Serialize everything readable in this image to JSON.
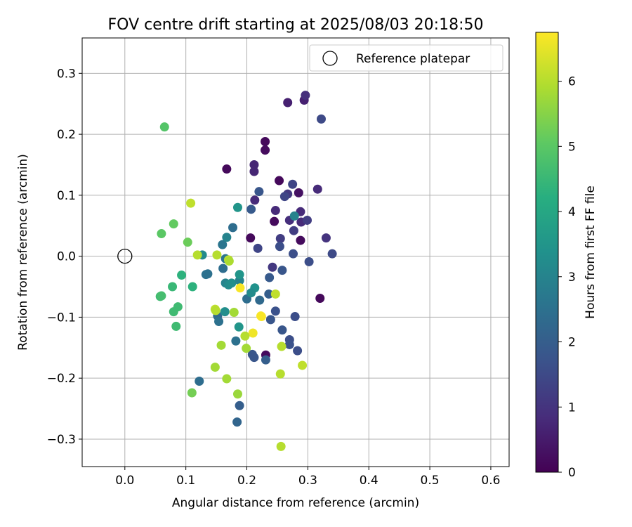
{
  "chart_data": {
    "type": "scatter",
    "title": "FOV centre drift starting at 2025/08/03 20:18:50",
    "xlabel": "Angular distance from reference (arcmin)",
    "ylabel": "Rotation from reference (arcmin)",
    "xlim": [
      -0.07,
      0.63
    ],
    "ylim": [
      -0.345,
      0.358
    ],
    "xticks": [
      0.0,
      0.1,
      0.2,
      0.3,
      0.4,
      0.5,
      0.6
    ],
    "xtick_labels": [
      "0.0",
      "0.1",
      "0.2",
      "0.3",
      "0.4",
      "0.5",
      "0.6"
    ],
    "yticks": [
      -0.3,
      -0.2,
      -0.1,
      0.0,
      0.1,
      0.2,
      0.3
    ],
    "ytick_labels": [
      "−0.3",
      "−0.2",
      "−0.1",
      "0.0",
      "0.1",
      "0.2",
      "0.3"
    ],
    "grid": true,
    "legend": {
      "position": "top-right",
      "entries": [
        "Reference platepar"
      ]
    },
    "reference_point": {
      "x": 0.0,
      "y": 0.0
    },
    "colorbar": {
      "label": "Hours from first FF file",
      "colormap": "viridis",
      "range": [
        0,
        6.75
      ],
      "ticks": [
        0,
        1,
        2,
        3,
        4,
        5,
        6
      ],
      "tick_labels": [
        "0",
        "1",
        "2",
        "3",
        "4",
        "5",
        "6"
      ]
    },
    "points": [
      {
        "x": 0.23,
        "y": 0.188,
        "t": 0.15
      },
      {
        "x": 0.23,
        "y": 0.174,
        "t": 0.2
      },
      {
        "x": 0.167,
        "y": 0.143,
        "t": 0.15
      },
      {
        "x": 0.253,
        "y": 0.124,
        "t": 0.15
      },
      {
        "x": 0.245,
        "y": 0.057,
        "t": 0.2
      },
      {
        "x": 0.206,
        "y": 0.03,
        "t": 0.15
      },
      {
        "x": 0.288,
        "y": 0.026,
        "t": 0.2
      },
      {
        "x": 0.32,
        "y": -0.069,
        "t": 0.15
      },
      {
        "x": 0.231,
        "y": -0.162,
        "t": 0.2
      },
      {
        "x": 0.285,
        "y": 0.104,
        "t": 0.3
      },
      {
        "x": 0.267,
        "y": 0.252,
        "t": 0.6
      },
      {
        "x": 0.294,
        "y": 0.256,
        "t": 0.6
      },
      {
        "x": 0.296,
        "y": 0.264,
        "t": 0.9
      },
      {
        "x": 0.212,
        "y": 0.15,
        "t": 0.7
      },
      {
        "x": 0.212,
        "y": 0.139,
        "t": 0.7
      },
      {
        "x": 0.213,
        "y": 0.092,
        "t": 0.8
      },
      {
        "x": 0.247,
        "y": 0.075,
        "t": 0.8
      },
      {
        "x": 0.316,
        "y": 0.11,
        "t": 0.8
      },
      {
        "x": 0.288,
        "y": 0.073,
        "t": 0.8
      },
      {
        "x": 0.289,
        "y": 0.056,
        "t": 0.8
      },
      {
        "x": 0.27,
        "y": 0.059,
        "t": 0.9
      },
      {
        "x": 0.299,
        "y": 0.059,
        "t": 1.2
      },
      {
        "x": 0.277,
        "y": 0.042,
        "t": 1.2
      },
      {
        "x": 0.33,
        "y": 0.03,
        "t": 1.0
      },
      {
        "x": 0.255,
        "y": 0.029,
        "t": 1.2
      },
      {
        "x": 0.242,
        "y": -0.018,
        "t": 1.1
      },
      {
        "x": 0.322,
        "y": 0.225,
        "t": 1.5
      },
      {
        "x": 0.267,
        "y": 0.102,
        "t": 1.1
      },
      {
        "x": 0.275,
        "y": 0.118,
        "t": 1.4
      },
      {
        "x": 0.262,
        "y": 0.098,
        "t": 1.4
      },
      {
        "x": 0.218,
        "y": 0.013,
        "t": 1.4
      },
      {
        "x": 0.254,
        "y": 0.016,
        "t": 1.6
      },
      {
        "x": 0.276,
        "y": 0.004,
        "t": 1.6
      },
      {
        "x": 0.34,
        "y": 0.004,
        "t": 1.5
      },
      {
        "x": 0.302,
        "y": -0.009,
        "t": 1.6
      },
      {
        "x": 0.258,
        "y": -0.023,
        "t": 1.8
      },
      {
        "x": 0.22,
        "y": 0.106,
        "t": 1.8
      },
      {
        "x": 0.207,
        "y": 0.077,
        "t": 1.9
      },
      {
        "x": 0.237,
        "y": -0.035,
        "t": 1.9
      },
      {
        "x": 0.279,
        "y": -0.099,
        "t": 1.6
      },
      {
        "x": 0.247,
        "y": -0.09,
        "t": 1.7
      },
      {
        "x": 0.239,
        "y": -0.104,
        "t": 1.8
      },
      {
        "x": 0.258,
        "y": -0.121,
        "t": 1.8
      },
      {
        "x": 0.27,
        "y": -0.137,
        "t": 1.6
      },
      {
        "x": 0.27,
        "y": -0.145,
        "t": 1.7
      },
      {
        "x": 0.283,
        "y": -0.155,
        "t": 1.6
      },
      {
        "x": 0.209,
        "y": -0.161,
        "t": 1.8
      },
      {
        "x": 0.212,
        "y": -0.166,
        "t": 1.8
      },
      {
        "x": 0.231,
        "y": -0.17,
        "t": 2.0
      },
      {
        "x": 0.188,
        "y": -0.245,
        "t": 2.0
      },
      {
        "x": 0.184,
        "y": -0.272,
        "t": 2.2
      },
      {
        "x": 0.122,
        "y": -0.205,
        "t": 2.4
      },
      {
        "x": 0.177,
        "y": 0.047,
        "t": 2.4
      },
      {
        "x": 0.2,
        "y": -0.07,
        "t": 2.4
      },
      {
        "x": 0.236,
        "y": -0.062,
        "t": 2.0
      },
      {
        "x": 0.221,
        "y": -0.072,
        "t": 2.3
      },
      {
        "x": 0.161,
        "y": -0.02,
        "t": 2.4
      },
      {
        "x": 0.152,
        "y": -0.098,
        "t": 2.3
      },
      {
        "x": 0.154,
        "y": -0.107,
        "t": 2.5
      },
      {
        "x": 0.182,
        "y": -0.139,
        "t": 2.5
      },
      {
        "x": 0.133,
        "y": -0.03,
        "t": 2.5
      },
      {
        "x": 0.136,
        "y": -0.029,
        "t": 2.5
      },
      {
        "x": 0.165,
        "y": -0.004,
        "t": 2.6
      },
      {
        "x": 0.16,
        "y": 0.019,
        "t": 2.6
      },
      {
        "x": 0.167,
        "y": 0.031,
        "t": 3.0
      },
      {
        "x": 0.185,
        "y": 0.08,
        "t": 3.5
      },
      {
        "x": 0.127,
        "y": 0.002,
        "t": 3.2
      },
      {
        "x": 0.165,
        "y": -0.044,
        "t": 3.0
      },
      {
        "x": 0.17,
        "y": -0.047,
        "t": 3.2
      },
      {
        "x": 0.175,
        "y": -0.044,
        "t": 3.3
      },
      {
        "x": 0.188,
        "y": -0.04,
        "t": 3.0
      },
      {
        "x": 0.188,
        "y": -0.03,
        "t": 3.5
      },
      {
        "x": 0.213,
        "y": -0.052,
        "t": 3.4
      },
      {
        "x": 0.207,
        "y": -0.06,
        "t": 3.2
      },
      {
        "x": 0.164,
        "y": -0.091,
        "t": 3.3
      },
      {
        "x": 0.187,
        "y": -0.116,
        "t": 3.5
      },
      {
        "x": 0.278,
        "y": 0.066,
        "t": 3.0
      },
      {
        "x": 0.093,
        "y": -0.031,
        "t": 4.3
      },
      {
        "x": 0.111,
        "y": -0.05,
        "t": 4.3
      },
      {
        "x": 0.078,
        "y": -0.05,
        "t": 4.5
      },
      {
        "x": 0.087,
        "y": -0.083,
        "t": 4.6
      },
      {
        "x": 0.08,
        "y": -0.091,
        "t": 4.6
      },
      {
        "x": 0.084,
        "y": -0.115,
        "t": 4.6
      },
      {
        "x": 0.058,
        "y": -0.066,
        "t": 4.6
      },
      {
        "x": 0.06,
        "y": -0.065,
        "t": 4.7
      },
      {
        "x": 0.065,
        "y": 0.212,
        "t": 4.9
      },
      {
        "x": 0.06,
        "y": 0.037,
        "t": 5.0
      },
      {
        "x": 0.08,
        "y": 0.053,
        "t": 5.1
      },
      {
        "x": 0.103,
        "y": 0.023,
        "t": 5.2
      },
      {
        "x": 0.11,
        "y": -0.224,
        "t": 5.3
      },
      {
        "x": 0.108,
        "y": 0.087,
        "t": 6.1
      },
      {
        "x": 0.119,
        "y": 0.002,
        "t": 6.0
      },
      {
        "x": 0.151,
        "y": 0.002,
        "t": 6.0
      },
      {
        "x": 0.17,
        "y": -0.006,
        "t": 6.1
      },
      {
        "x": 0.171,
        "y": -0.008,
        "t": 5.9
      },
      {
        "x": 0.148,
        "y": -0.087,
        "t": 6.1
      },
      {
        "x": 0.149,
        "y": -0.089,
        "t": 6.0
      },
      {
        "x": 0.179,
        "y": -0.092,
        "t": 5.8
      },
      {
        "x": 0.189,
        "y": -0.052,
        "t": 6.7
      },
      {
        "x": 0.223,
        "y": -0.098,
        "t": 6.7
      },
      {
        "x": 0.224,
        "y": -0.099,
        "t": 6.7
      },
      {
        "x": 0.21,
        "y": -0.126,
        "t": 6.6
      },
      {
        "x": 0.197,
        "y": -0.131,
        "t": 6.0
      },
      {
        "x": 0.199,
        "y": -0.151,
        "t": 5.8
      },
      {
        "x": 0.158,
        "y": -0.146,
        "t": 5.8
      },
      {
        "x": 0.148,
        "y": -0.182,
        "t": 5.8
      },
      {
        "x": 0.167,
        "y": -0.201,
        "t": 5.8
      },
      {
        "x": 0.185,
        "y": -0.226,
        "t": 5.7
      },
      {
        "x": 0.257,
        "y": -0.148,
        "t": 6.0
      },
      {
        "x": 0.255,
        "y": -0.193,
        "t": 6.0
      },
      {
        "x": 0.291,
        "y": -0.179,
        "t": 6.1
      },
      {
        "x": 0.247,
        "y": -0.062,
        "t": 6.1
      },
      {
        "x": 0.256,
        "y": -0.312,
        "t": 6.0
      }
    ]
  }
}
